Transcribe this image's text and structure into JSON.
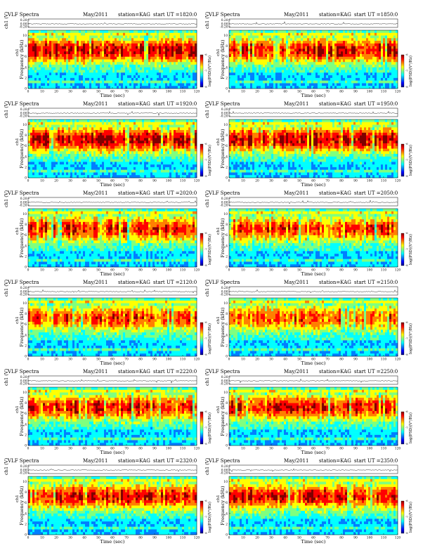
{
  "page": {
    "background": "#ffffff"
  },
  "colormap": {
    "name": "jet",
    "stops": [
      "#00007f",
      "#0000ff",
      "#007fff",
      "#00ffff",
      "#7fff7f",
      "#ffff00",
      "#ff7f00",
      "#ff0000",
      "#7f0000"
    ],
    "colorbar_label": "log(PSD)(V²/Hz)",
    "colorbar_ticks": [
      "-6",
      "-7",
      "-8"
    ]
  },
  "chart_data": [
    {
      "type": "heatmap",
      "title_left": "VLF Spectra",
      "date": "May/2011",
      "station": "station=KAG",
      "start": "start  UT  =1820:0",
      "xlabel": "Time  (sec)",
      "ylabel": "Frequency  (kHz)",
      "ylabel_sub": "ch1",
      "top_ylabel": "ch1 (V)",
      "xticks": [
        "0",
        "10",
        "20",
        "30",
        "40",
        "50",
        "60",
        "70",
        "80",
        "90",
        "100",
        "110",
        "120"
      ],
      "yticks": [
        "0",
        "2",
        "4",
        "6",
        "8",
        "10"
      ],
      "top_yticks": [
        "0.20",
        "0.00",
        "-0.20"
      ],
      "xlim": [
        0,
        120
      ],
      "ylim": [
        0,
        11
      ],
      "colorbar_label": "log(PSD)(V²/Hz)",
      "seed": 11,
      "activity": 0.78
    },
    {
      "type": "heatmap",
      "title_left": "VLF Spectra",
      "date": "May/2011",
      "station": "station=KAG",
      "start": "start  UT  =1850:0",
      "xlabel": "Time  (sec)",
      "ylabel": "Frequency  (kHz)",
      "ylabel_sub": "ch1",
      "top_ylabel": "ch1 (V)",
      "xticks": [
        "0",
        "10",
        "20",
        "30",
        "40",
        "50",
        "60",
        "70",
        "80",
        "90",
        "100",
        "110",
        "120"
      ],
      "yticks": [
        "0",
        "2",
        "4",
        "6",
        "8",
        "10"
      ],
      "top_yticks": [
        "0.20",
        "0.00",
        "-0.20"
      ],
      "xlim": [
        0,
        120
      ],
      "ylim": [
        0,
        11
      ],
      "colorbar_label": "log(PSD)(V²/Hz)",
      "seed": 23,
      "activity": 0.76
    },
    {
      "type": "heatmap",
      "title_left": "VLF Spectra",
      "date": "May/2011",
      "station": "station=KAG",
      "start": "start  UT  =1920:0",
      "xlabel": "Time  (sec)",
      "ylabel": "Frequency  (kHz)",
      "ylabel_sub": "ch1",
      "top_ylabel": "ch1 (V)",
      "xticks": [
        "0",
        "10",
        "20",
        "30",
        "40",
        "50",
        "60",
        "70",
        "80",
        "90",
        "100",
        "110",
        "120"
      ],
      "yticks": [
        "0",
        "2",
        "4",
        "6",
        "8",
        "10"
      ],
      "top_yticks": [
        "0.20",
        "0.00",
        "-0.20"
      ],
      "xlim": [
        0,
        120
      ],
      "ylim": [
        0,
        11
      ],
      "colorbar_label": "log(PSD)(V²/Hz)",
      "seed": 37,
      "activity": 0.8
    },
    {
      "type": "heatmap",
      "title_left": "VLF Spectra",
      "date": "May/2011",
      "station": "station=KAG",
      "start": "start  UT  =1950:0",
      "xlabel": "Time  (sec)",
      "ylabel": "Frequency  (kHz)",
      "ylabel_sub": "ch1",
      "top_ylabel": "ch1 (V)",
      "xticks": [
        "0",
        "10",
        "20",
        "30",
        "40",
        "50",
        "60",
        "70",
        "80",
        "90",
        "100",
        "110",
        "120"
      ],
      "yticks": [
        "0",
        "2",
        "4",
        "6",
        "8",
        "10"
      ],
      "top_yticks": [
        "0.20",
        "0.00",
        "-0.20"
      ],
      "xlim": [
        0,
        120
      ],
      "ylim": [
        0,
        11
      ],
      "colorbar_label": "log(PSD)(V²/Hz)",
      "seed": 41,
      "activity": 0.8
    },
    {
      "type": "heatmap",
      "title_left": "VLF Spectra",
      "date": "May/2011",
      "station": "station=KAG",
      "start": "start  UT  =2020:0",
      "xlabel": "Time  (sec)",
      "ylabel": "Frequency  (kHz)",
      "ylabel_sub": "ch1",
      "top_ylabel": "ch1 (V)",
      "xticks": [
        "0",
        "10",
        "20",
        "30",
        "40",
        "50",
        "60",
        "70",
        "80",
        "90",
        "100",
        "110",
        "120"
      ],
      "yticks": [
        "0",
        "2",
        "4",
        "6",
        "8",
        "10"
      ],
      "top_yticks": [
        "0.20",
        "0.00",
        "-0.20"
      ],
      "xlim": [
        0,
        120
      ],
      "ylim": [
        0,
        11
      ],
      "colorbar_label": "log(PSD)(V²/Hz)",
      "seed": 53,
      "activity": 0.66
    },
    {
      "type": "heatmap",
      "title_left": "VLF Spectra",
      "date": "May/2011",
      "station": "station=KAG",
      "start": "start  UT  =2050:0",
      "xlabel": "Time  (sec)",
      "ylabel": "Frequency  (kHz)",
      "ylabel_sub": "ch1",
      "top_ylabel": "ch1 (V)",
      "xticks": [
        "0",
        "10",
        "20",
        "30",
        "40",
        "50",
        "60",
        "70",
        "80",
        "90",
        "100",
        "110",
        "120"
      ],
      "yticks": [
        "0",
        "2",
        "4",
        "6",
        "8",
        "10"
      ],
      "top_yticks": [
        "0.20",
        "0.00",
        "-0.20"
      ],
      "xlim": [
        0,
        120
      ],
      "ylim": [
        0,
        11
      ],
      "colorbar_label": "log(PSD)(V²/Hz)",
      "seed": 67,
      "activity": 0.62
    },
    {
      "type": "heatmap",
      "title_left": "VLF Spectra",
      "date": "May/2011",
      "station": "station=KAG",
      "start": "start  UT  =2120:0",
      "xlabel": "Time  (sec)",
      "ylabel": "Frequency  (kHz)",
      "ylabel_sub": "ch1",
      "top_ylabel": "ch1 (V)",
      "xticks": [
        "0",
        "10",
        "20",
        "30",
        "40",
        "50",
        "60",
        "70",
        "80",
        "90",
        "100",
        "110",
        "120"
      ],
      "yticks": [
        "0",
        "2",
        "4",
        "6",
        "8",
        "10"
      ],
      "top_yticks": [
        "0.20",
        "0.00",
        "-0.20"
      ],
      "xlim": [
        0,
        120
      ],
      "ylim": [
        0,
        11
      ],
      "colorbar_label": "log(PSD)(V²/Hz)",
      "seed": 71,
      "activity": 0.64
    },
    {
      "type": "heatmap",
      "title_left": "VLF Spectra",
      "date": "May/2011",
      "station": "station=KAG",
      "start": "start  UT  =2150:0",
      "xlabel": "Time  (sec)",
      "ylabel": "Frequency  (kHz)",
      "ylabel_sub": "ch1",
      "top_ylabel": "ch1 (V)",
      "xticks": [
        "0",
        "10",
        "20",
        "30",
        "40",
        "50",
        "60",
        "70",
        "80",
        "90",
        "100",
        "110",
        "120"
      ],
      "yticks": [
        "0",
        "2",
        "4",
        "6",
        "8",
        "10"
      ],
      "top_yticks": [
        "0.20",
        "0.00",
        "-0.20"
      ],
      "xlim": [
        0,
        120
      ],
      "ylim": [
        0,
        11
      ],
      "colorbar_label": "log(PSD)(V²/Hz)",
      "seed": 83,
      "activity": 0.6
    },
    {
      "type": "heatmap",
      "title_left": "VLF Spectra",
      "date": "May/2011",
      "station": "station=KAG",
      "start": "start  UT  =2220:0",
      "xlabel": "Time  (sec)",
      "ylabel": "Frequency  (kHz)",
      "ylabel_sub": "ch1",
      "top_ylabel": "ch1 (V)",
      "xticks": [
        "0",
        "10",
        "20",
        "30",
        "40",
        "50",
        "60",
        "70",
        "80",
        "90",
        "100",
        "110",
        "120"
      ],
      "yticks": [
        "0",
        "2",
        "4",
        "6",
        "8",
        "10"
      ],
      "top_yticks": [
        "0.20",
        "0.00",
        "-0.20"
      ],
      "xlim": [
        0,
        120
      ],
      "ylim": [
        0,
        11
      ],
      "colorbar_label": "log(PSD)(V²/Hz)",
      "seed": 97,
      "activity": 0.7
    },
    {
      "type": "heatmap",
      "title_left": "VLF Spectra",
      "date": "May/2011",
      "station": "station=KAG",
      "start": "start  UT  =2250:0",
      "xlabel": "Time  (sec)",
      "ylabel": "Frequency  (kHz)",
      "ylabel_sub": "ch1",
      "top_ylabel": "ch1 (V)",
      "xticks": [
        "0",
        "10",
        "20",
        "30",
        "40",
        "50",
        "60",
        "70",
        "80",
        "90",
        "100",
        "110",
        "120"
      ],
      "yticks": [
        "0",
        "2",
        "4",
        "6",
        "8",
        "10"
      ],
      "top_yticks": [
        "0.20",
        "0.00",
        "-0.20"
      ],
      "xlim": [
        0,
        120
      ],
      "ylim": [
        0,
        11
      ],
      "colorbar_label": "log(PSD)(V²/Hz)",
      "seed": 101,
      "activity": 0.7
    },
    {
      "type": "heatmap",
      "title_left": "VLF Spectra",
      "date": "May/2011",
      "station": "station=KAG",
      "start": "start  UT  =2320:0",
      "xlabel": "Time  (sec)",
      "ylabel": "Frequency  (kHz)",
      "ylabel_sub": "ch1",
      "top_ylabel": "ch1 (V)",
      "xticks": [
        "0",
        "10",
        "20",
        "30",
        "40",
        "50",
        "60",
        "70",
        "80",
        "90",
        "100",
        "110",
        "120"
      ],
      "yticks": [
        "0",
        "2",
        "4",
        "6",
        "8",
        "10"
      ],
      "top_yticks": [
        "0.20",
        "0.00",
        "-0.20"
      ],
      "xlim": [
        0,
        120
      ],
      "ylim": [
        0,
        11
      ],
      "colorbar_label": "log(PSD)(V²/Hz)",
      "seed": 113,
      "activity": 0.72
    },
    {
      "type": "heatmap",
      "title_left": "VLF Spectra",
      "date": "May/2011",
      "station": "station=KAG",
      "start": "start  UT  =2350:0",
      "xlabel": "Time  (sec)",
      "ylabel": "Frequency  (kHz)",
      "ylabel_sub": "ch1",
      "top_ylabel": "ch1 (V)",
      "xticks": [
        "0",
        "10",
        "20",
        "30",
        "40",
        "50",
        "60",
        "70",
        "80",
        "90",
        "100",
        "110",
        "120"
      ],
      "yticks": [
        "0",
        "2",
        "4",
        "6",
        "8",
        "10"
      ],
      "top_yticks": [
        "0.20",
        "0.00",
        "-0.20"
      ],
      "xlim": [
        0,
        120
      ],
      "ylim": [
        0,
        11
      ],
      "colorbar_label": "log(PSD)(V²/Hz)",
      "seed": 127,
      "activity": 0.7
    }
  ]
}
